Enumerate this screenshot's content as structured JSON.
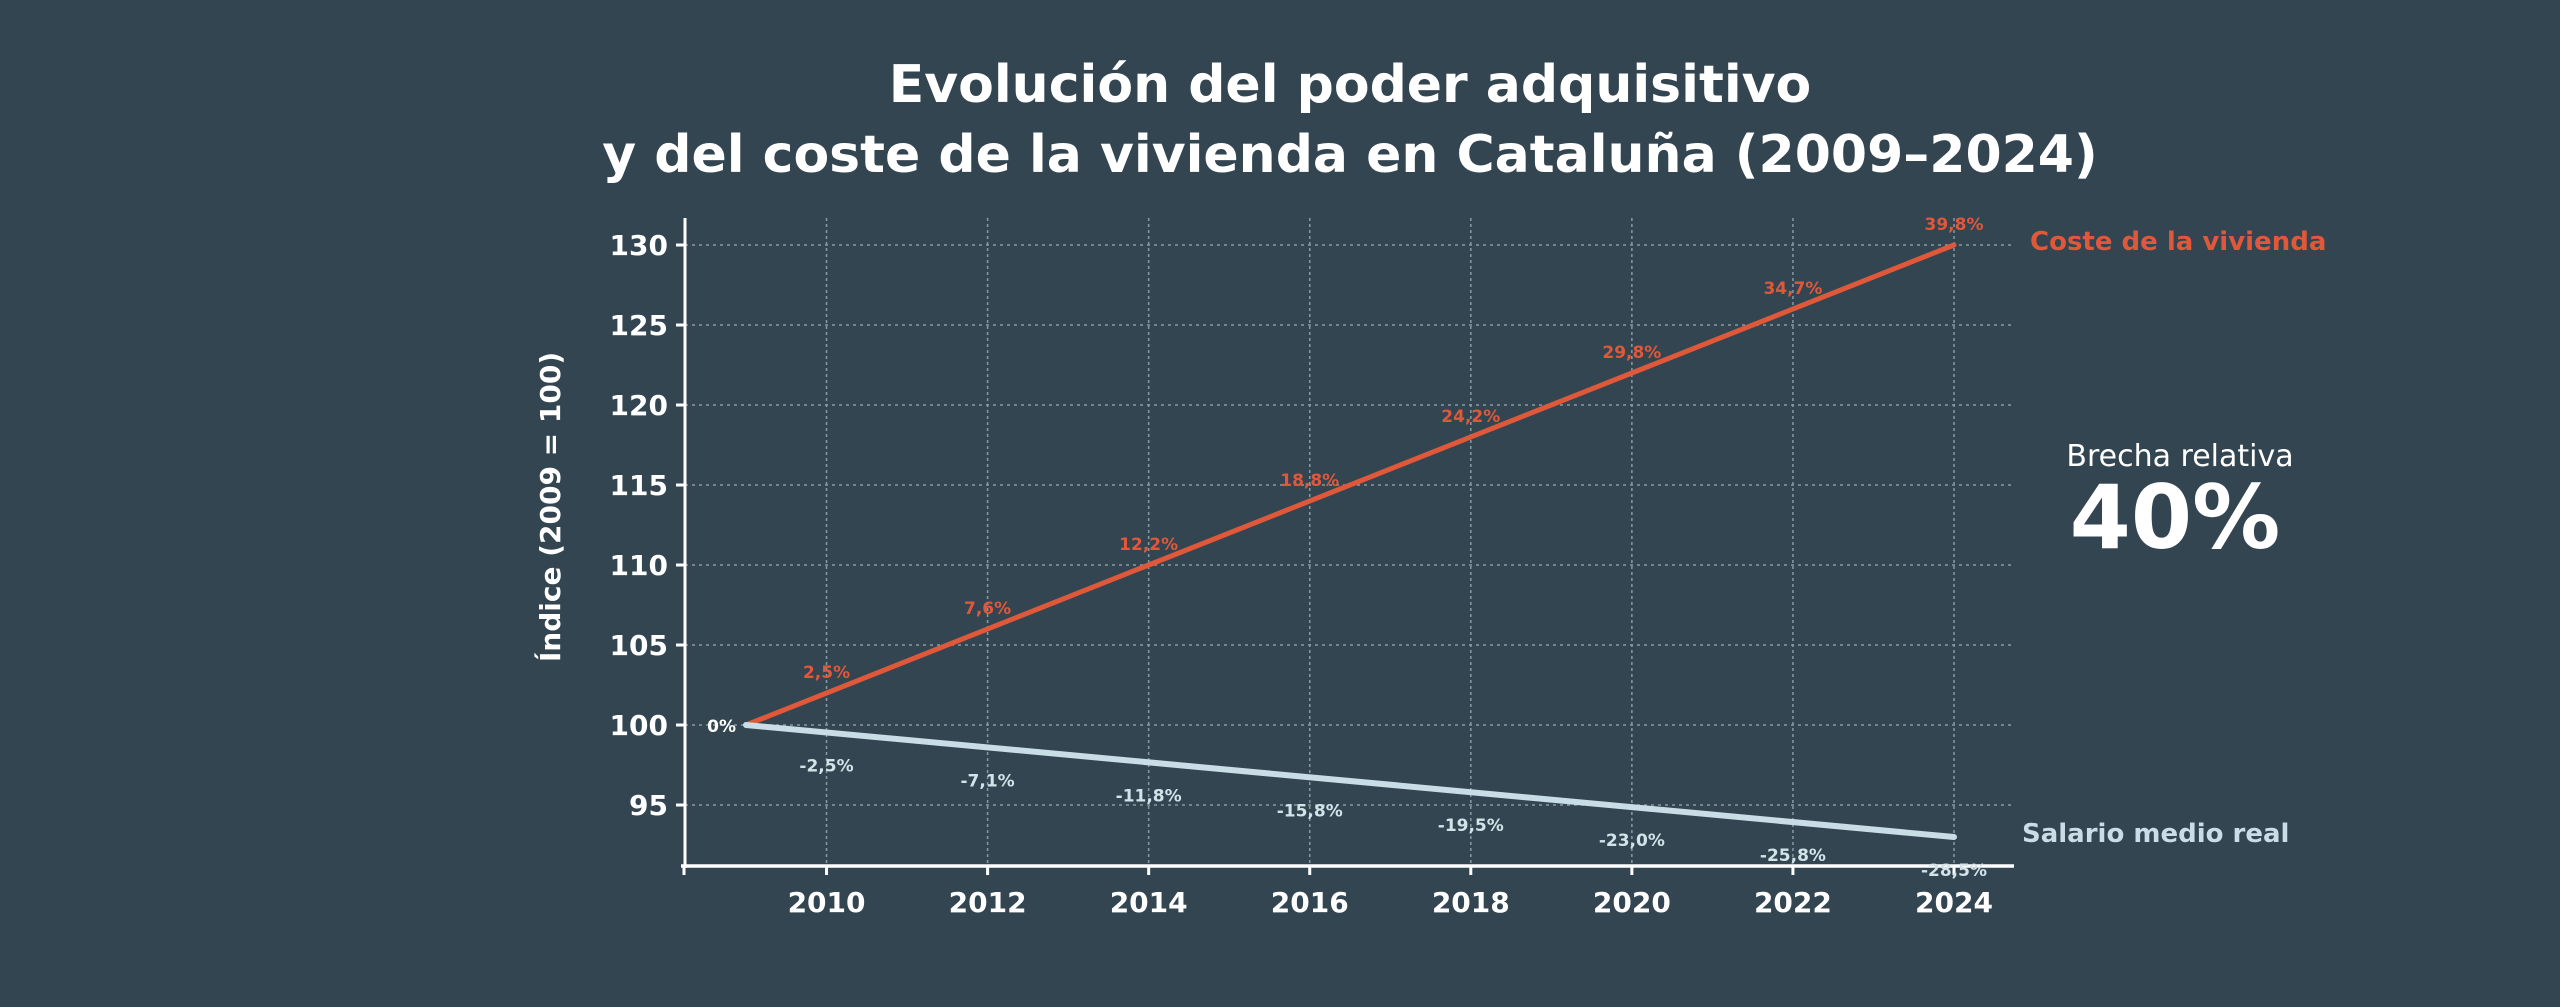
{
  "chart_data": {
    "type": "line",
    "title": [
      "Evolución del poder adquisitivo",
      "y del coste de la vivienda en Cataluña (2009–2024)"
    ],
    "xlabel": "",
    "ylabel": "Índice (2009 = 100)",
    "xlim": [
      2009,
      2024
    ],
    "ylim": [
      91,
      131.5
    ],
    "yticks": [
      95,
      100,
      105,
      110,
      115,
      120,
      125,
      130
    ],
    "xticks": [
      2010,
      2012,
      2014,
      2016,
      2018,
      2020,
      2022,
      2024
    ],
    "grid": true,
    "series": [
      {
        "name": "Coste de la vivienda",
        "color": "#e0583a",
        "x": [
          2009,
          2024
        ],
        "y": [
          100,
          130
        ],
        "labels": [
          {
            "x": 2009,
            "text": "0%"
          },
          {
            "x": 2010,
            "text": "2,5%"
          },
          {
            "x": 2012,
            "text": "7,6%"
          },
          {
            "x": 2014,
            "text": "12,2%"
          },
          {
            "x": 2016,
            "text": "18,8%"
          },
          {
            "x": 2018,
            "text": "24,2%"
          },
          {
            "x": 2020,
            "text": "29,8%"
          },
          {
            "x": 2022,
            "text": "34,7%"
          },
          {
            "x": 2024,
            "text": "39,8%"
          }
        ]
      },
      {
        "name": "Salario medio real",
        "color": "#c9dde6",
        "x": [
          2009,
          2024
        ],
        "y": [
          100,
          93
        ],
        "labels": [
          {
            "x": 2010,
            "text": "-2,5%"
          },
          {
            "x": 2012,
            "text": "-7,1%"
          },
          {
            "x": 2014,
            "text": "-11,8%"
          },
          {
            "x": 2016,
            "text": "-15,8%"
          },
          {
            "x": 2018,
            "text": "-19,5%"
          },
          {
            "x": 2020,
            "text": "-23,0%"
          },
          {
            "x": 2022,
            "text": "-25,8%"
          },
          {
            "x": 2024,
            "text": "-28,5%"
          }
        ]
      }
    ],
    "annotation": {
      "label": "Brecha relativa",
      "value": "40%"
    },
    "legend": "direct-labels-right"
  },
  "colors": {
    "background": "#334550",
    "text": "#ffffff",
    "grid": "#8a9aa3"
  }
}
